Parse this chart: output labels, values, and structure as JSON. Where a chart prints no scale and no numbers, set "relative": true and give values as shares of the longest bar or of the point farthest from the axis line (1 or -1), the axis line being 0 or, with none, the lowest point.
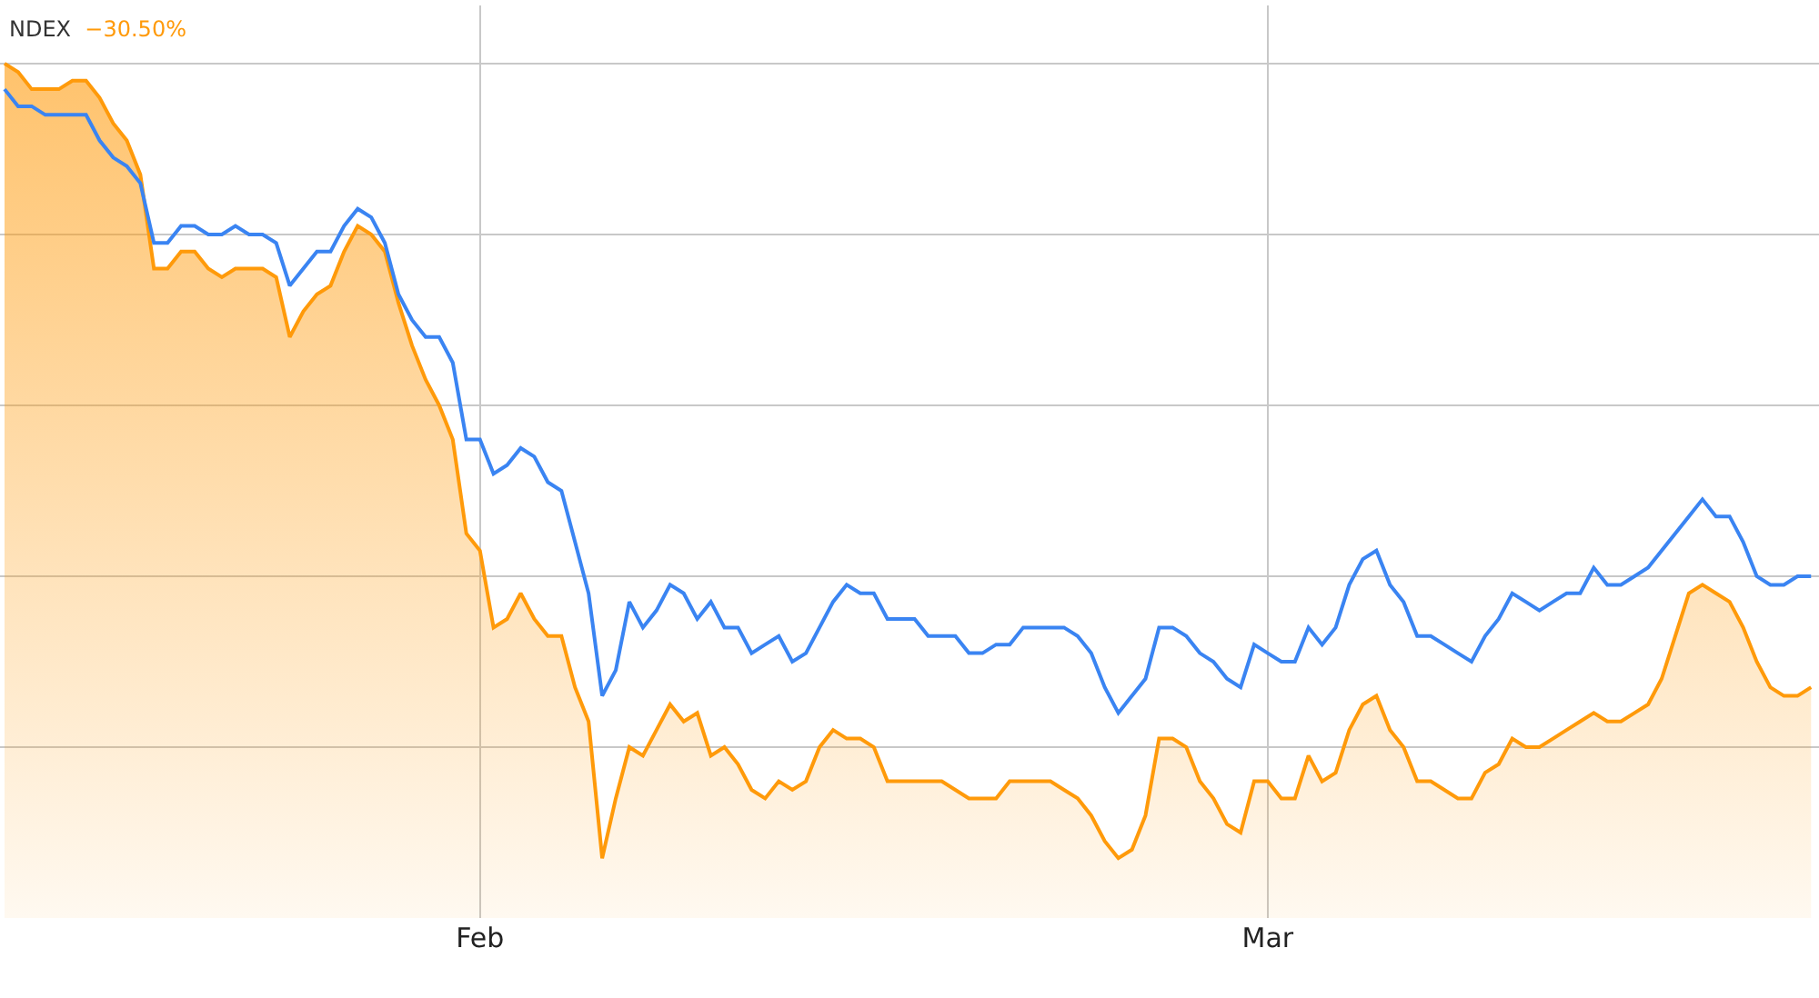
{
  "chart_data": {
    "type": "line",
    "relative": true,
    "x": [
      "--01-14T12:00",
      "--01-15T00:00",
      "--01-15T12:00",
      "--01-16T00:00",
      "--01-16T12:00",
      "--01-17T00:00",
      "--01-17T12:00",
      "--01-18T00:00",
      "--01-18T12:00",
      "--01-19T00:00",
      "--01-19T12:00",
      "--01-20T00:00",
      "--01-20T12:00",
      "--01-21T00:00",
      "--01-21T12:00",
      "--01-22T00:00",
      "--01-22T12:00",
      "--01-23T00:00",
      "--01-23T12:00",
      "--01-24T00:00",
      "--01-24T12:00",
      "--01-25T00:00",
      "--01-25T12:00",
      "--01-26T00:00",
      "--01-26T12:00",
      "--01-27T00:00",
      "--01-27T12:00",
      "--01-28T00:00",
      "--01-28T12:00",
      "--01-29T00:00",
      "--01-29T12:00",
      "--01-30T00:00",
      "--01-30T12:00",
      "--01-31T00:00",
      "--01-31T12:00",
      "--02-01T00:00",
      "--02-01T12:00",
      "--02-02T00:00",
      "--02-02T12:00",
      "--02-03T00:00",
      "--02-03T12:00",
      "--02-04T00:00",
      "--02-04T12:00",
      "--02-05T00:00",
      "--02-05T12:00",
      "--02-06T00:00",
      "--02-06T12:00",
      "--02-07T00:00",
      "--02-07T12:00",
      "--02-08T00:00",
      "--02-08T12:00",
      "--02-09T00:00",
      "--02-09T12:00",
      "--02-10T00:00",
      "--02-10T12:00",
      "--02-11T00:00",
      "--02-11T12:00",
      "--02-12T00:00",
      "--02-12T12:00",
      "--02-13T00:00",
      "--02-13T12:00",
      "--02-14T00:00",
      "--02-14T12:00",
      "--02-15T00:00",
      "--02-15T12:00",
      "--02-16T00:00",
      "--02-16T12:00",
      "--02-17T00:00",
      "--02-17T12:00",
      "--02-18T00:00",
      "--02-18T12:00",
      "--02-19T00:00",
      "--02-19T12:00",
      "--02-20T00:00",
      "--02-20T12:00",
      "--02-21T00:00",
      "--02-21T12:00",
      "--02-22T00:00",
      "--02-22T12:00",
      "--02-23T00:00",
      "--02-23T12:00",
      "--02-24T00:00",
      "--02-24T12:00",
      "--02-25T00:00",
      "--02-25T12:00",
      "--02-26T00:00",
      "--02-26T12:00",
      "--02-27T00:00",
      "--02-27T12:00",
      "--02-28T00:00",
      "--02-28T12:00",
      "--02-29T00:00",
      "--02-29T12:00",
      "--03-01T00:00",
      "--03-01T12:00",
      "--03-02T00:00",
      "--03-02T12:00",
      "--03-03T00:00",
      "--03-03T12:00",
      "--03-04T00:00",
      "--03-04T12:00",
      "--03-05T00:00",
      "--03-05T12:00",
      "--03-06T00:00",
      "--03-06T12:00",
      "--03-07T00:00",
      "--03-07T12:00",
      "--03-08T00:00",
      "--03-08T12:00",
      "--03-09T00:00",
      "--03-09T12:00",
      "--03-10T00:00",
      "--03-10T12:00",
      "--03-11T00:00",
      "--03-11T12:00",
      "--03-12T00:00",
      "--03-12T12:00",
      "--03-13T00:00",
      "--03-13T12:00",
      "--03-14T00:00",
      "--03-14T12:00",
      "--03-15T00:00",
      "--03-15T12:00",
      "--03-16T00:00",
      "--03-16T12:00",
      "--03-17T00:00",
      "--03-17T12:00",
      "--03-18T00:00",
      "--03-18T12:00",
      "--03-19T00:00",
      "--03-19T12:00",
      "--03-20T00:00",
      "--03-20T12:00",
      "--03-21T00:00"
    ],
    "xlim": [
      "--01-14T08:00",
      "--03-21T07:00"
    ],
    "xticks": [
      {
        "value": "--02-01",
        "label": "Feb"
      },
      {
        "value": "--03-01",
        "label": "Mar"
      }
    ],
    "series": [
      {
        "color": "#3a84f2",
        "values": [
          0.97,
          0.95,
          0.95,
          0.94,
          0.94,
          0.94,
          0.94,
          0.91,
          0.89,
          0.88,
          0.86,
          0.79,
          0.79,
          0.81,
          0.81,
          0.8,
          0.8,
          0.81,
          0.8,
          0.8,
          0.79,
          0.74,
          0.76,
          0.78,
          0.78,
          0.81,
          0.83,
          0.82,
          0.79,
          0.73,
          0.7,
          0.68,
          0.68,
          0.65,
          0.56,
          0.56,
          0.52,
          0.53,
          0.55,
          0.54,
          0.51,
          0.5,
          0.44,
          0.38,
          0.26,
          0.29,
          0.37,
          0.34,
          0.36,
          0.39,
          0.38,
          0.35,
          0.37,
          0.34,
          0.34,
          0.31,
          0.32,
          0.33,
          0.3,
          0.31,
          0.34,
          0.37,
          0.39,
          0.38,
          0.38,
          0.35,
          0.35,
          0.35,
          0.33,
          0.33,
          0.33,
          0.31,
          0.31,
          0.32,
          0.32,
          0.34,
          0.34,
          0.34,
          0.34,
          0.33,
          0.31,
          0.27,
          0.24,
          0.26,
          0.28,
          0.34,
          0.34,
          0.33,
          0.31,
          0.3,
          0.28,
          0.27,
          0.32,
          0.31,
          0.3,
          0.3,
          0.34,
          0.32,
          0.34,
          0.39,
          0.42,
          0.43,
          0.39,
          0.37,
          0.33,
          0.33,
          0.32,
          0.31,
          0.3,
          0.33,
          0.35,
          0.38,
          0.37,
          0.36,
          0.37,
          0.38,
          0.38,
          0.41,
          0.39,
          0.39,
          0.4,
          0.41,
          0.43,
          0.45,
          0.47,
          0.49,
          0.47,
          0.47,
          0.44,
          0.4,
          0.39,
          0.39,
          0.4,
          0.4
        ]
      },
      {
        "type": "area",
        "name": "NDEX",
        "color": "#ff9a0a",
        "values": [
          1.0,
          0.99,
          0.97,
          0.97,
          0.97,
          0.98,
          0.98,
          0.96,
          0.93,
          0.91,
          0.87,
          0.76,
          0.76,
          0.78,
          0.78,
          0.76,
          0.75,
          0.76,
          0.76,
          0.76,
          0.75,
          0.68,
          0.71,
          0.73,
          0.74,
          0.78,
          0.81,
          0.8,
          0.78,
          0.72,
          0.67,
          0.63,
          0.6,
          0.56,
          0.45,
          0.43,
          0.34,
          0.35,
          0.38,
          0.35,
          0.33,
          0.33,
          0.27,
          0.23,
          0.07,
          0.14,
          0.2,
          0.19,
          0.22,
          0.25,
          0.23,
          0.24,
          0.19,
          0.2,
          0.18,
          0.15,
          0.14,
          0.16,
          0.15,
          0.16,
          0.2,
          0.22,
          0.21,
          0.21,
          0.2,
          0.16,
          0.16,
          0.16,
          0.16,
          0.16,
          0.15,
          0.14,
          0.14,
          0.14,
          0.16,
          0.16,
          0.16,
          0.16,
          0.15,
          0.14,
          0.12,
          0.09,
          0.07,
          0.08,
          0.12,
          0.21,
          0.21,
          0.2,
          0.16,
          0.14,
          0.11,
          0.1,
          0.16,
          0.16,
          0.14,
          0.14,
          0.19,
          0.16,
          0.17,
          0.22,
          0.25,
          0.26,
          0.22,
          0.2,
          0.16,
          0.16,
          0.15,
          0.14,
          0.14,
          0.17,
          0.18,
          0.21,
          0.2,
          0.2,
          0.21,
          0.22,
          0.23,
          0.24,
          0.23,
          0.23,
          0.24,
          0.25,
          0.28,
          0.33,
          0.38,
          0.39,
          0.38,
          0.37,
          0.34,
          0.3,
          0.27,
          0.26,
          0.26,
          0.27
        ]
      }
    ],
    "annotations": [
      "−30.50%"
    ],
    "grid": true
  }
}
